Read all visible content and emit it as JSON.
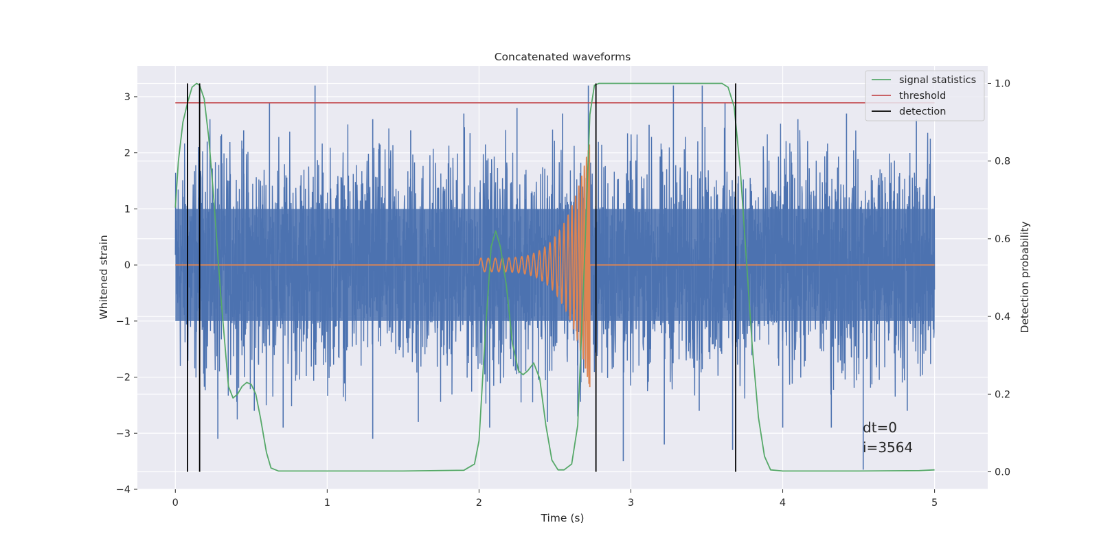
{
  "chart_data": {
    "type": "line",
    "title": "Concatenated waveforms",
    "xlabel": "Time (s)",
    "ylabel": "Whitened strain",
    "y2label": "Detection probability",
    "xlim": [
      -0.25,
      5.35
    ],
    "ylim": [
      -4,
      3.55
    ],
    "y2lim": [
      -0.045,
      1.045
    ],
    "xticks": [
      0,
      1,
      2,
      3,
      4,
      5
    ],
    "yticks": [
      3,
      2,
      1,
      0,
      -1,
      -2,
      -3,
      -4
    ],
    "y2ticks": [
      1.0,
      0.8,
      0.6,
      0.4,
      0.2,
      0.0
    ],
    "ytick_labels": [
      "3",
      "2",
      "1",
      "0",
      "−1",
      "−2",
      "−3",
      "−4"
    ],
    "y2tick_labels": [
      "1.0",
      "0.8",
      "0.6",
      "0.4",
      "0.2",
      "0.0"
    ],
    "grid": true,
    "legend": "top-right",
    "colors": {
      "strain": "#4c72b0",
      "template": "#dd8452",
      "signal_statistics": "#55a868",
      "threshold": "#c44e52",
      "detection": "#000000",
      "plot_bg": "#eaeaf2",
      "grid": "#ffffff"
    },
    "strain": {
      "x_range": [
        0,
        5
      ],
      "band": [
        -1.0,
        1.0
      ],
      "peaks": [
        {
          "x": 0.08,
          "y": 3.2
        },
        {
          "x": 0.16,
          "y": 3.2
        },
        {
          "x": 0.21,
          "y": 2.2
        },
        {
          "x": 0.3,
          "y": 2.3
        },
        {
          "x": 0.45,
          "y": 2.4
        },
        {
          "x": 0.62,
          "y": 2.9
        },
        {
          "x": 0.92,
          "y": 3.2
        },
        {
          "x": 1.3,
          "y": 2.6
        },
        {
          "x": 1.55,
          "y": 2.4
        },
        {
          "x": 1.9,
          "y": 2.7
        },
        {
          "x": 2.25,
          "y": 2.8
        },
        {
          "x": 2.55,
          "y": 2.7
        },
        {
          "x": 2.72,
          "y": 3.2
        },
        {
          "x": 3.12,
          "y": 2.5
        },
        {
          "x": 3.28,
          "y": 3.2
        },
        {
          "x": 3.47,
          "y": 3.2
        },
        {
          "x": 3.62,
          "y": 2.9
        },
        {
          "x": 4.1,
          "y": 2.6
        },
        {
          "x": 4.42,
          "y": 2.7
        },
        {
          "x": 4.88,
          "y": 2.6
        }
      ],
      "troughs": [
        {
          "x": 0.28,
          "y": -2.4
        },
        {
          "x": 0.28,
          "y": -3.1
        },
        {
          "x": 0.52,
          "y": -2.6
        },
        {
          "x": 0.71,
          "y": -2.9
        },
        {
          "x": 1.3,
          "y": -3.1
        },
        {
          "x": 1.6,
          "y": -2.8
        },
        {
          "x": 2.07,
          "y": -2.9
        },
        {
          "x": 2.45,
          "y": -2.8
        },
        {
          "x": 2.65,
          "y": -2.7
        },
        {
          "x": 2.95,
          "y": -3.5
        },
        {
          "x": 3.22,
          "y": -3.2
        },
        {
          "x": 3.45,
          "y": -2.6
        },
        {
          "x": 3.67,
          "y": -3.3
        },
        {
          "x": 4.0,
          "y": -2.9
        },
        {
          "x": 4.32,
          "y": -2.9
        },
        {
          "x": 4.53,
          "y": -3.65
        },
        {
          "x": 4.82,
          "y": -2.6
        }
      ]
    },
    "template": {
      "flat_ranges": [
        [
          0,
          2.0
        ],
        [
          2.73,
          5.0
        ]
      ],
      "chirp": {
        "t_start": 2.0,
        "t_end": 2.73,
        "amp_start": 0.12,
        "amp_peak": 2.2,
        "cycles": 24
      }
    },
    "signal_statistics": {
      "x": [
        0,
        0.02,
        0.05,
        0.08,
        0.11,
        0.14,
        0.16,
        0.19,
        0.22,
        0.25,
        0.3,
        0.35,
        0.38,
        0.41,
        0.44,
        0.47,
        0.5,
        0.53,
        0.56,
        0.6,
        0.63,
        0.68,
        1.0,
        1.5,
        1.9,
        1.97,
        2.0,
        2.04,
        2.08,
        2.11,
        2.14,
        2.18,
        2.22,
        2.26,
        2.29,
        2.32,
        2.36,
        2.4,
        2.44,
        2.48,
        2.52,
        2.56,
        2.61,
        2.65,
        2.69,
        2.73,
        2.76,
        2.79,
        2.82,
        2.86,
        3.2,
        3.6,
        3.64,
        3.68,
        3.72,
        3.76,
        3.8,
        3.84,
        3.88,
        3.92,
        4.0,
        4.5,
        4.9,
        5.0
      ],
      "y": [
        0.68,
        0.8,
        0.9,
        0.95,
        0.99,
        1.0,
        0.995,
        0.96,
        0.86,
        0.72,
        0.45,
        0.22,
        0.19,
        0.2,
        0.22,
        0.23,
        0.225,
        0.2,
        0.14,
        0.05,
        0.01,
        0.002,
        0.002,
        0.002,
        0.004,
        0.02,
        0.08,
        0.35,
        0.58,
        0.62,
        0.58,
        0.48,
        0.33,
        0.26,
        0.25,
        0.26,
        0.28,
        0.24,
        0.12,
        0.03,
        0.005,
        0.005,
        0.02,
        0.12,
        0.5,
        0.92,
        0.995,
        1.0,
        1.0,
        1.0,
        1.0,
        1.0,
        0.99,
        0.94,
        0.78,
        0.55,
        0.32,
        0.14,
        0.04,
        0.005,
        0.002,
        0.002,
        0.003,
        0.005
      ]
    },
    "threshold": {
      "x": [
        0,
        5
      ],
      "y2": 0.95
    },
    "detections": [
      0.08,
      0.16,
      2.77,
      3.69
    ],
    "legend_entries": [
      "signal statistics",
      "threshold",
      "detection"
    ],
    "annotations": [
      "dt=0",
      "i=3564"
    ],
    "annotation_position": {
      "x": 4.5,
      "y": -3.0
    }
  }
}
